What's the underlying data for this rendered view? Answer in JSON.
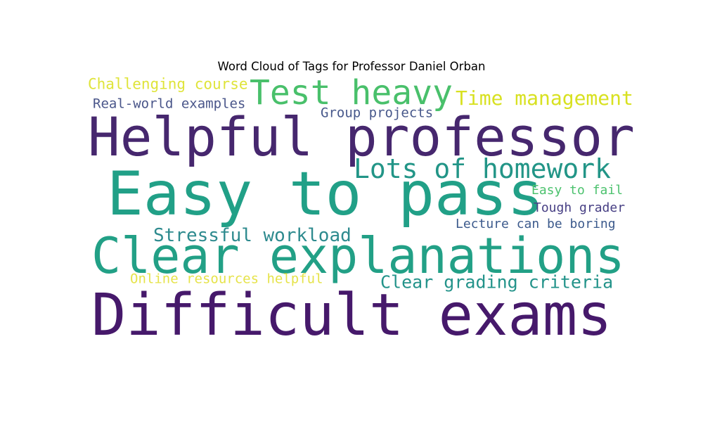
{
  "chart_data": {
    "type": "wordcloud",
    "title": "Word Cloud of Tags for Professor Daniel Orban",
    "words": [
      {
        "text": "Difficult exams",
        "color": "#46196b"
      },
      {
        "text": "Clear explanations",
        "color": "#22a086"
      },
      {
        "text": "Helpful professor",
        "color": "#46276e"
      },
      {
        "text": "Easy to pass",
        "color": "#21a087"
      },
      {
        "text": "Test heavy",
        "color": "#49c06b"
      },
      {
        "text": "Lots of homework",
        "color": "#229587"
      },
      {
        "text": "Time management",
        "color": "#d8e121"
      },
      {
        "text": "Challenging course",
        "color": "#dfe43a"
      },
      {
        "text": "Real-world examples",
        "color": "#4a568a"
      },
      {
        "text": "Group projects",
        "color": "#47588b"
      },
      {
        "text": "Stressful workload",
        "color": "#2d8a8e"
      },
      {
        "text": "Easy to fail",
        "color": "#4cc26e"
      },
      {
        "text": "Tough grader",
        "color": "#473f84"
      },
      {
        "text": "Lecture can be boring",
        "color": "#3c5a8c"
      },
      {
        "text": "Online resources helpful",
        "color": "#e6e34a"
      },
      {
        "text": "Clear grading criteria",
        "color": "#23938a"
      }
    ]
  }
}
